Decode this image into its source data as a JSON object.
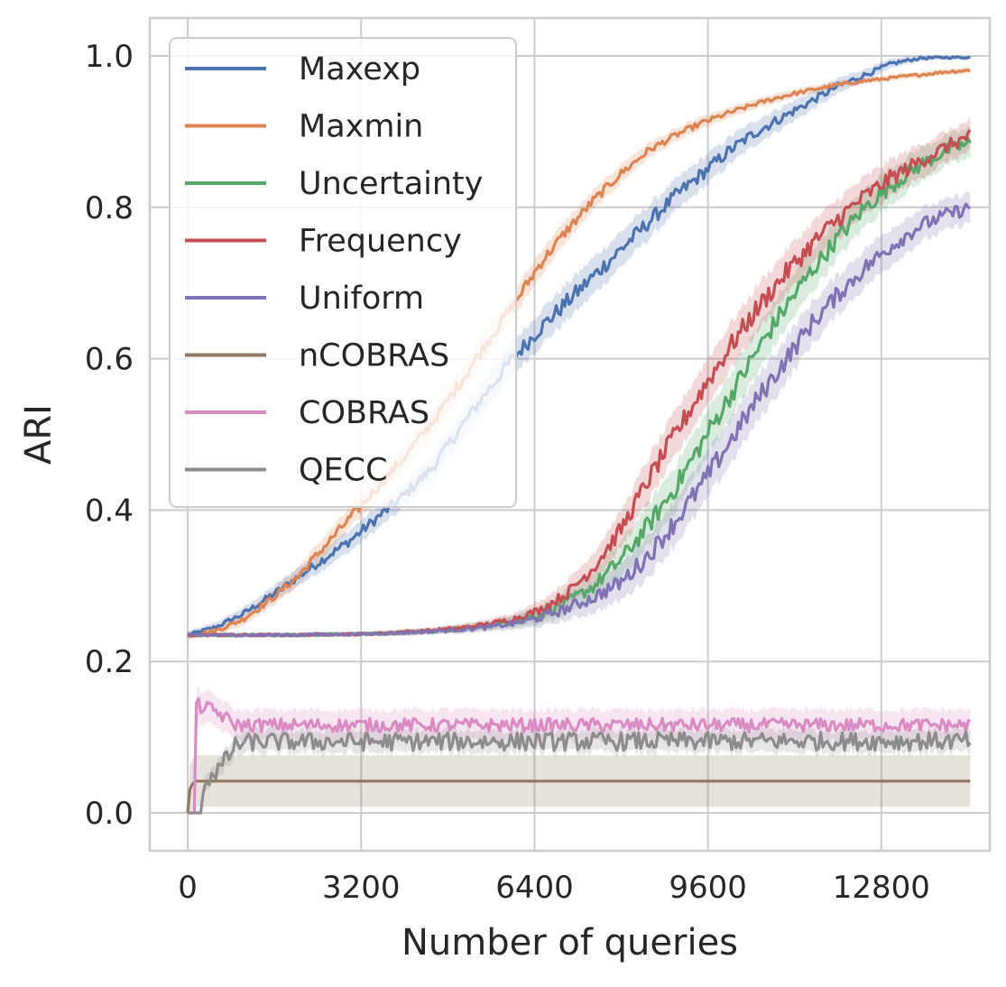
{
  "chart_data": {
    "type": "line",
    "title": "",
    "xlabel": "Number of queries",
    "ylabel": "ARI",
    "xlim": [
      -700,
      14800
    ],
    "ylim": [
      -0.05,
      1.05
    ],
    "xticks": [
      0,
      3200,
      6400,
      9600,
      12800
    ],
    "xtick_labels": [
      "0",
      "3200",
      "6400",
      "9600",
      "12800"
    ],
    "yticks": [
      0.0,
      0.2,
      0.4,
      0.6,
      0.8,
      1.0
    ],
    "ytick_labels": [
      "0.0",
      "0.2",
      "0.4",
      "0.6",
      "0.8",
      "1.0"
    ],
    "grid": true,
    "legend_position": "upper-left",
    "series": [
      {
        "name": "Maxexp",
        "color": "#4c72b0",
        "x": [
          0,
          500,
          1000,
          1500,
          2000,
          2500,
          3000,
          3500,
          4000,
          4500,
          5000,
          5500,
          6000,
          6500,
          7000,
          7500,
          8000,
          8500,
          9000,
          9500,
          10000,
          10500,
          11000,
          11500,
          12000,
          12500,
          13000,
          13500,
          14000,
          14450
        ],
        "y": [
          0.235,
          0.245,
          0.262,
          0.285,
          0.31,
          0.335,
          0.36,
          0.39,
          0.42,
          0.455,
          0.505,
          0.555,
          0.6,
          0.64,
          0.675,
          0.71,
          0.745,
          0.78,
          0.815,
          0.845,
          0.875,
          0.9,
          0.92,
          0.94,
          0.96,
          0.975,
          0.99,
          0.997,
          0.998,
          0.998
        ],
        "band": [
          0.005,
          0.006,
          0.008,
          0.01,
          0.012,
          0.013,
          0.014,
          0.015,
          0.016,
          0.017,
          0.018,
          0.02,
          0.022,
          0.023,
          0.024,
          0.024,
          0.023,
          0.022,
          0.021,
          0.02,
          0.018,
          0.016,
          0.014,
          0.012,
          0.01,
          0.008,
          0.006,
          0.004,
          0.003,
          0.003
        ]
      },
      {
        "name": "Maxmin",
        "color": "#dd8452",
        "x": [
          0,
          500,
          1000,
          1500,
          2000,
          2500,
          3000,
          3500,
          4000,
          4500,
          5000,
          5500,
          6000,
          6500,
          7000,
          7500,
          8000,
          8500,
          9000,
          9500,
          10000,
          10500,
          11000,
          11500,
          12000,
          12500,
          13000,
          13500,
          14000,
          14450
        ],
        "y": [
          0.235,
          0.24,
          0.255,
          0.28,
          0.31,
          0.35,
          0.39,
          0.43,
          0.47,
          0.515,
          0.565,
          0.62,
          0.67,
          0.725,
          0.77,
          0.81,
          0.845,
          0.875,
          0.895,
          0.912,
          0.925,
          0.937,
          0.947,
          0.955,
          0.962,
          0.967,
          0.971,
          0.975,
          0.979,
          0.981
        ],
        "band": [
          0.005,
          0.006,
          0.008,
          0.01,
          0.012,
          0.013,
          0.014,
          0.015,
          0.016,
          0.017,
          0.018,
          0.018,
          0.017,
          0.016,
          0.015,
          0.013,
          0.012,
          0.01,
          0.009,
          0.008,
          0.007,
          0.006,
          0.006,
          0.005,
          0.005,
          0.004,
          0.004,
          0.004,
          0.004,
          0.004
        ]
      },
      {
        "name": "Uncertainty",
        "color": "#55a868",
        "x": [
          0,
          500,
          1000,
          1500,
          2000,
          2500,
          3000,
          3500,
          4000,
          4500,
          5000,
          5500,
          6000,
          6500,
          7000,
          7500,
          8000,
          8500,
          9000,
          9500,
          10000,
          10500,
          11000,
          11500,
          12000,
          12500,
          13000,
          13500,
          14000,
          14450
        ],
        "y": [
          0.235,
          0.235,
          0.235,
          0.235,
          0.235,
          0.236,
          0.236,
          0.237,
          0.238,
          0.24,
          0.243,
          0.247,
          0.253,
          0.262,
          0.278,
          0.3,
          0.335,
          0.38,
          0.43,
          0.49,
          0.55,
          0.61,
          0.665,
          0.715,
          0.76,
          0.8,
          0.83,
          0.855,
          0.875,
          0.885
        ],
        "band": [
          0.003,
          0.003,
          0.003,
          0.003,
          0.003,
          0.003,
          0.003,
          0.003,
          0.004,
          0.004,
          0.005,
          0.006,
          0.008,
          0.012,
          0.016,
          0.02,
          0.024,
          0.028,
          0.03,
          0.03,
          0.03,
          0.03,
          0.029,
          0.028,
          0.026,
          0.025,
          0.024,
          0.022,
          0.02,
          0.02
        ]
      },
      {
        "name": "Frequency",
        "color": "#c44e52",
        "x": [
          0,
          500,
          1000,
          1500,
          2000,
          2500,
          3000,
          3500,
          4000,
          4500,
          5000,
          5500,
          6000,
          6500,
          7000,
          7500,
          8000,
          8500,
          9000,
          9500,
          10000,
          10500,
          11000,
          11500,
          12000,
          12500,
          13000,
          13500,
          14000,
          14450
        ],
        "y": [
          0.235,
          0.235,
          0.235,
          0.235,
          0.235,
          0.236,
          0.236,
          0.237,
          0.239,
          0.241,
          0.244,
          0.249,
          0.256,
          0.268,
          0.29,
          0.325,
          0.375,
          0.44,
          0.5,
          0.56,
          0.615,
          0.665,
          0.71,
          0.75,
          0.785,
          0.815,
          0.84,
          0.86,
          0.88,
          0.895
        ],
        "band": [
          0.003,
          0.003,
          0.003,
          0.003,
          0.003,
          0.003,
          0.003,
          0.003,
          0.004,
          0.004,
          0.005,
          0.006,
          0.008,
          0.012,
          0.016,
          0.02,
          0.024,
          0.028,
          0.03,
          0.03,
          0.03,
          0.03,
          0.029,
          0.028,
          0.026,
          0.025,
          0.024,
          0.022,
          0.02,
          0.02
        ]
      },
      {
        "name": "Uniform",
        "color": "#8172b3",
        "x": [
          0,
          500,
          1000,
          1500,
          2000,
          2500,
          3000,
          3500,
          4000,
          4500,
          5000,
          5500,
          6000,
          6500,
          7000,
          7500,
          8000,
          8500,
          9000,
          9500,
          10000,
          10500,
          11000,
          11500,
          12000,
          12500,
          13000,
          13500,
          14000,
          14450
        ],
        "y": [
          0.235,
          0.235,
          0.235,
          0.235,
          0.235,
          0.236,
          0.236,
          0.237,
          0.238,
          0.24,
          0.242,
          0.245,
          0.25,
          0.258,
          0.27,
          0.285,
          0.305,
          0.34,
          0.385,
          0.435,
          0.49,
          0.545,
          0.595,
          0.645,
          0.685,
          0.72,
          0.75,
          0.775,
          0.79,
          0.8
        ],
        "band": [
          0.003,
          0.003,
          0.003,
          0.003,
          0.003,
          0.003,
          0.003,
          0.003,
          0.004,
          0.004,
          0.005,
          0.006,
          0.008,
          0.012,
          0.016,
          0.02,
          0.024,
          0.028,
          0.03,
          0.03,
          0.03,
          0.03,
          0.029,
          0.028,
          0.026,
          0.025,
          0.024,
          0.022,
          0.02,
          0.02
        ]
      },
      {
        "name": "nCOBRAS",
        "color": "#937860",
        "x": [
          0,
          30,
          100,
          150,
          150,
          14450
        ],
        "y": [
          0.0,
          0.03,
          0.04,
          0.042,
          0.042,
          0.042
        ],
        "band_lower": [
          0.0,
          0.0,
          0.005,
          0.008,
          0.008,
          0.008
        ],
        "band_upper": [
          0.0,
          0.06,
          0.074,
          0.076,
          0.076,
          0.076
        ]
      },
      {
        "name": "COBRAS",
        "color": "#da8bc3",
        "x": [
          0,
          120,
          160,
          500,
          700,
          900,
          14450
        ],
        "y": [
          0.0,
          0.0,
          0.142,
          0.135,
          0.125,
          0.116,
          0.116
        ],
        "band": [
          0.0,
          0.0,
          0.022,
          0.02,
          0.02,
          0.02,
          0.02
        ]
      },
      {
        "name": "QECC",
        "color": "#8c8c8c",
        "x": [
          0,
          250,
          300,
          600,
          900,
          1200,
          14450
        ],
        "y": [
          0.0,
          0.0,
          0.04,
          0.06,
          0.09,
          0.094,
          0.095
        ],
        "band": [
          0.0,
          0.0,
          0.01,
          0.012,
          0.014,
          0.015,
          0.015
        ],
        "noisy": true
      }
    ]
  }
}
